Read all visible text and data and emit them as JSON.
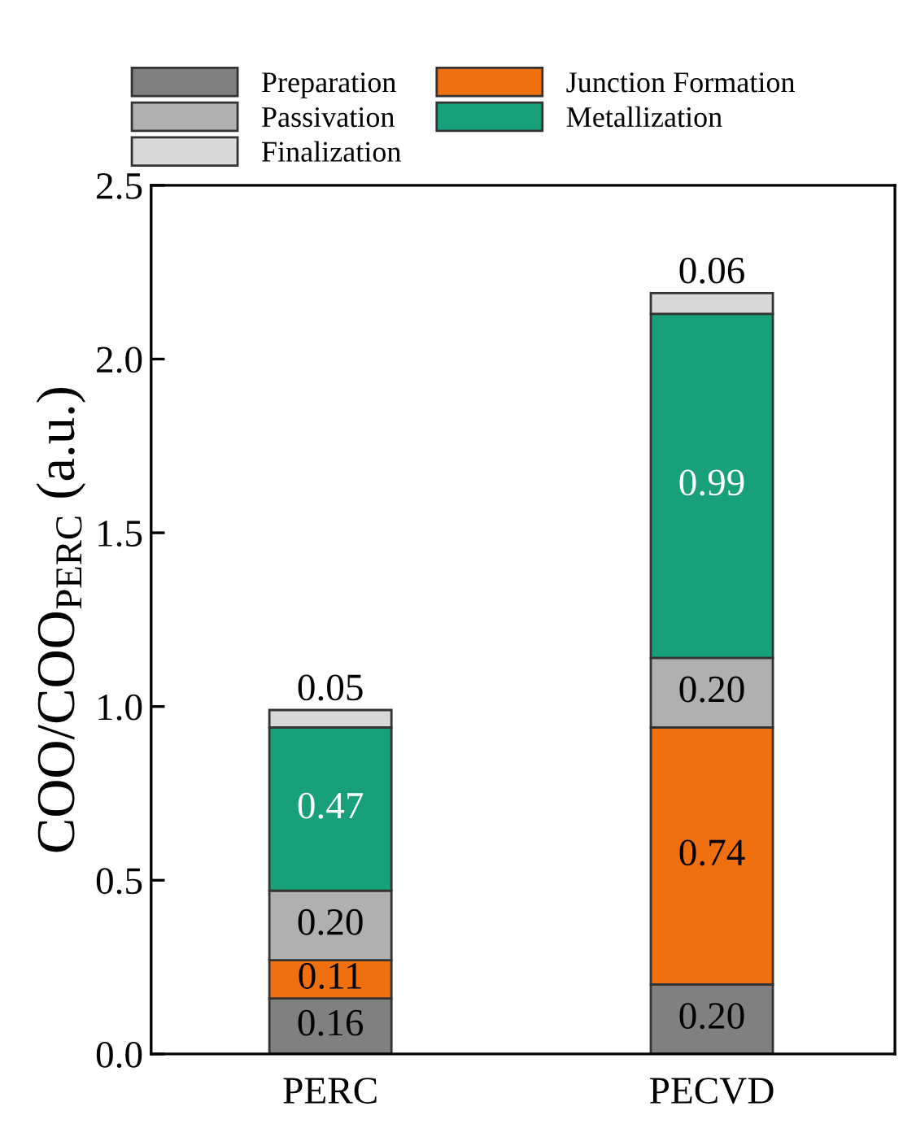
{
  "chart_data": {
    "type": "bar",
    "stacked": true,
    "categories": [
      "PERC",
      "PECVD"
    ],
    "series": [
      {
        "name": "Preparation",
        "color": "#808080",
        "values": [
          0.16,
          0.2
        ],
        "value_labels": [
          "0.16",
          "0.20"
        ]
      },
      {
        "name": "Junction Formation",
        "color": "#f07010",
        "values": [
          0.11,
          0.74
        ],
        "value_labels": [
          "0.11",
          "0.74"
        ]
      },
      {
        "name": "Passivation",
        "color": "#b0b0b0",
        "values": [
          0.2,
          0.2
        ],
        "value_labels": [
          "0.20",
          "0.20"
        ]
      },
      {
        "name": "Metallization",
        "color": "#17a07a",
        "values": [
          0.47,
          0.99
        ],
        "value_labels": [
          "0.47",
          "0.99"
        ]
      },
      {
        "name": "Finalization",
        "color": "#d9d9d9",
        "values": [
          0.05,
          0.06
        ],
        "value_labels": [
          "0.05",
          "0.06"
        ]
      }
    ],
    "ylabel": "COO/COO$_{PERC}$ (a.u.)",
    "ylim": [
      0,
      2.5
    ],
    "yticks": [
      {
        "value": 0,
        "label": "0.0"
      },
      0.5,
      {
        "value": 1,
        "label": "1.0"
      },
      1.5,
      {
        "value": 2,
        "label": "2.0"
      },
      2.5
    ],
    "legend": "top",
    "grid": false
  }
}
